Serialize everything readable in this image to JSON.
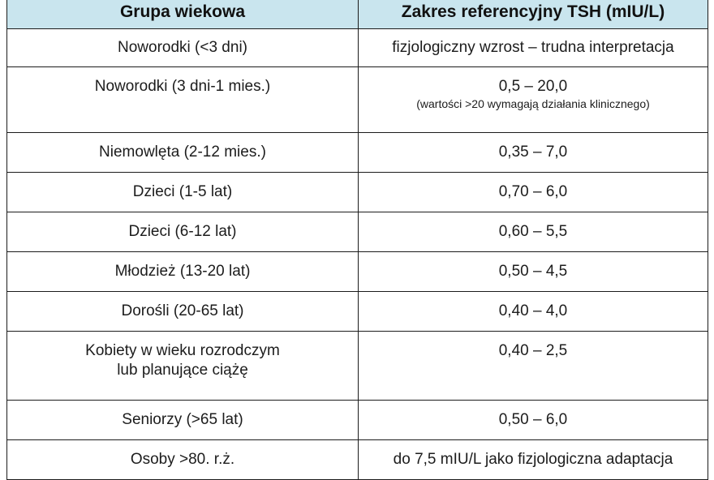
{
  "header": {
    "col_age": "Grupa wiekowa",
    "col_range": "Zakres referencyjny TSH (mIU/L)"
  },
  "rows": [
    {
      "age": "Noworodki (<3 dni)",
      "range": "fizjologiczny wzrost – trudna interpretacja"
    },
    {
      "age": "Noworodki (3 dni-1 mies.)",
      "range": "0,5 – 20,0",
      "note": "(wartości >20 wymagają działania klinicznego)"
    },
    {
      "age": "Niemowlęta (2-12 mies.)",
      "range": "0,35 – 7,0"
    },
    {
      "age": "Dzieci (1-5 lat)",
      "range": "0,70 – 6,0"
    },
    {
      "age": "Dzieci (6-12 lat)",
      "range": "0,60 – 5,5"
    },
    {
      "age": "Młodzież (13-20 lat)",
      "range": "0,50 – 4,5"
    },
    {
      "age": "Dorośli (20-65 lat)",
      "range": "0,40 – 4,0"
    },
    {
      "age_line1": "Kobiety w wieku rozrodczym",
      "age_line2": "lub planujące ciążę",
      "range": "0,40 – 2,5"
    },
    {
      "age": "Seniorzy (>65 lat)",
      "range": "0,50 – 6,0"
    },
    {
      "age": "Osoby >80. r.ż.",
      "range": "do 7,5 mIU/L jako fizjologiczna adaptacja"
    }
  ],
  "colors": {
    "header_background": "#c9e5ee",
    "border": "#1c1c1c"
  }
}
